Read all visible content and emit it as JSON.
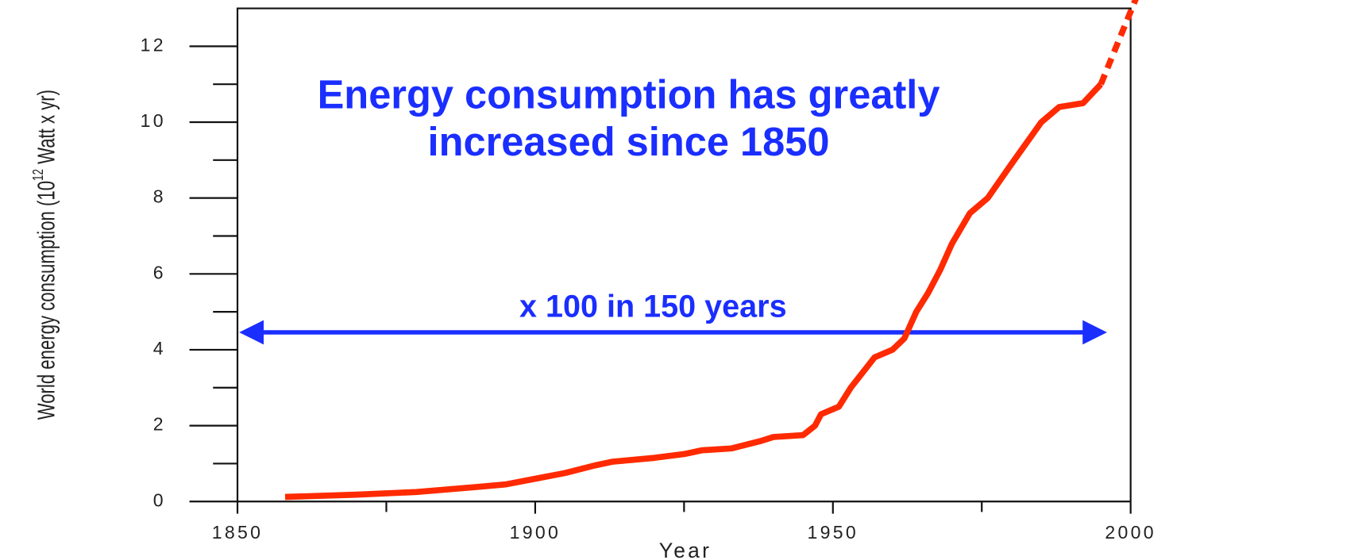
{
  "chart_data": {
    "type": "line",
    "annotation_lines": [
      "Energy consumption has greatly",
      "increased since 1850"
    ],
    "arrow_label": "x 100 in 150 years",
    "xlabel": "Year",
    "ylabel": [
      "World energy consumption (10",
      "12",
      " Watt x yr)"
    ],
    "xlim": [
      1850,
      2000
    ],
    "xticks": [
      1850,
      1900,
      1950,
      2000
    ],
    "xticks_minor": [
      1875,
      1925,
      1975
    ],
    "ylim": [
      0,
      13
    ],
    "yticks": [
      0,
      2,
      4,
      6,
      8,
      10,
      12
    ],
    "yticks_minor": [
      1,
      3,
      5,
      7,
      9,
      11
    ],
    "series": [
      {
        "color": "#ff2a00",
        "style": "solid",
        "x": [
          1858,
          1870,
          1880,
          1890,
          1895,
          1900,
          1905,
          1910,
          1913,
          1920,
          1925,
          1928,
          1933,
          1938,
          1940,
          1945,
          1947,
          1948,
          1951,
          1953,
          1955,
          1957,
          1960,
          1962,
          1964,
          1966,
          1968,
          1970,
          1973,
          1976,
          1980,
          1985,
          1988,
          1992,
          1995
        ],
        "values": [
          0.12,
          0.18,
          0.25,
          0.38,
          0.45,
          0.6,
          0.75,
          0.95,
          1.05,
          1.15,
          1.25,
          1.35,
          1.4,
          1.6,
          1.7,
          1.75,
          2.0,
          2.3,
          2.5,
          3.0,
          3.4,
          3.8,
          4.0,
          4.3,
          5.0,
          5.5,
          6.1,
          6.8,
          7.6,
          8.0,
          8.9,
          10.0,
          10.4,
          10.5,
          11.0
        ]
      },
      {
        "color": "#ff2a00",
        "style": "dashed",
        "x": [
          1995,
          2001
        ],
        "values": [
          11.0,
          13.3
        ]
      }
    ]
  }
}
